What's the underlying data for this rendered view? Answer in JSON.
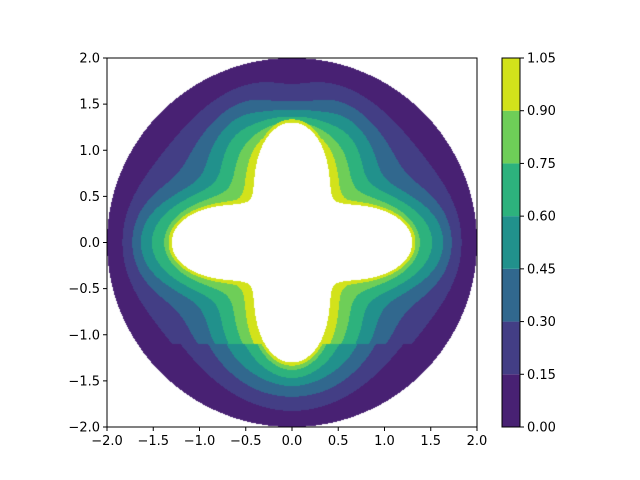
{
  "chart_data": {
    "type": "contourf",
    "title": "",
    "xlabel": "",
    "ylabel": "",
    "xlim": [
      -2.0,
      2.0
    ],
    "ylim": [
      -2.0,
      2.0
    ],
    "x_ticks": [
      -2.0,
      -1.5,
      -1.0,
      -0.5,
      0.0,
      0.5,
      1.0,
      1.5,
      2.0
    ],
    "x_tick_labels": [
      "−2.0",
      "−1.5",
      "−1.0",
      "−0.5",
      "0.0",
      "0.5",
      "1.0",
      "1.5",
      "2.0"
    ],
    "y_ticks": [
      -2.0,
      -1.5,
      -1.0,
      -0.5,
      0.0,
      0.5,
      1.0,
      1.5,
      2.0
    ],
    "y_tick_labels": [
      "−2.0",
      "−1.5",
      "−1.0",
      "−0.5",
      "0.0",
      "0.5",
      "1.0",
      "1.5",
      "2.0"
    ],
    "grid": false,
    "domain": {
      "outer_radius": 2.0,
      "inner_hole_radius_on_axes": 1.3,
      "inner_hole_radius_on_diagonals": 0.65
    },
    "levels": [
      0.0,
      0.15,
      0.3,
      0.45,
      0.6,
      0.75,
      0.9,
      1.05
    ],
    "colorbar": {
      "ticks": [
        0.0,
        0.15,
        0.3,
        0.45,
        0.6,
        0.75,
        0.9,
        1.05
      ],
      "tick_labels": [
        "0.00",
        "0.15",
        "0.30",
        "0.45",
        "0.60",
        "0.75",
        "0.90",
        "1.05"
      ],
      "colors": [
        "#482173",
        "#433e85",
        "#31688e",
        "#21918c",
        "#2db27d",
        "#6ece58",
        "#d2e21b"
      ]
    }
  }
}
